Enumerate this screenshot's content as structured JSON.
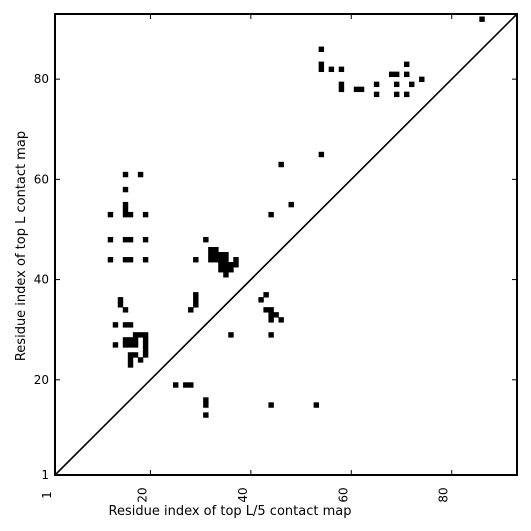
{
  "chart_data": {
    "type": "scatter",
    "title": "",
    "xlabel": "Residue index of top L/5 contact map",
    "ylabel": "Residue index of top L contact map",
    "xlim": [
      1,
      93
    ],
    "ylim": [
      1,
      93
    ],
    "xticks": [
      1,
      20,
      40,
      60,
      80
    ],
    "yticks": [
      1,
      20,
      40,
      60,
      80
    ],
    "x_tick_rotation": -90,
    "grid": false,
    "diagonal": true,
    "marker": "square",
    "color": "#000000",
    "upper_triangle_points": [
      [
        86,
        92
      ],
      [
        54,
        86
      ],
      [
        54,
        83
      ],
      [
        54,
        82
      ],
      [
        56,
        82
      ],
      [
        58,
        82
      ],
      [
        58,
        79
      ],
      [
        58,
        78
      ],
      [
        61,
        78
      ],
      [
        62,
        78
      ],
      [
        65,
        79
      ],
      [
        65,
        77
      ],
      [
        68,
        81
      ],
      [
        69,
        81
      ],
      [
        69,
        79
      ],
      [
        69,
        77
      ],
      [
        71,
        83
      ],
      [
        71,
        81
      ],
      [
        71,
        77
      ],
      [
        72,
        79
      ],
      [
        74,
        80
      ],
      [
        54,
        65
      ],
      [
        46,
        63
      ],
      [
        48,
        55
      ],
      [
        44,
        53
      ]
    ],
    "lower_triangle_points": [
      [
        12,
        53
      ],
      [
        15,
        53
      ],
      [
        16,
        53
      ],
      [
        19,
        53
      ],
      [
        15,
        61
      ],
      [
        18,
        61
      ],
      [
        15,
        58
      ],
      [
        15,
        55
      ],
      [
        15,
        54
      ],
      [
        12,
        48
      ],
      [
        15,
        48
      ],
      [
        16,
        48
      ],
      [
        19,
        48
      ],
      [
        12,
        44
      ],
      [
        15,
        44
      ],
      [
        16,
        44
      ],
      [
        19,
        44
      ],
      [
        29,
        44
      ],
      [
        31,
        48
      ],
      [
        32,
        46
      ],
      [
        33,
        46
      ],
      [
        32,
        45
      ],
      [
        33,
        45
      ],
      [
        34,
        45
      ],
      [
        35,
        45
      ],
      [
        32,
        44
      ],
      [
        33,
        44
      ],
      [
        34,
        44
      ],
      [
        35,
        44
      ],
      [
        37,
        44
      ],
      [
        34,
        43
      ],
      [
        35,
        43
      ],
      [
        36,
        43
      ],
      [
        37,
        43
      ],
      [
        34,
        42
      ],
      [
        35,
        42
      ],
      [
        36,
        42
      ],
      [
        35,
        41
      ],
      [
        14,
        36
      ],
      [
        14,
        35
      ],
      [
        15,
        34
      ],
      [
        29,
        37
      ],
      [
        29,
        36
      ],
      [
        29,
        35
      ],
      [
        28,
        34
      ],
      [
        13,
        31
      ],
      [
        15,
        31
      ],
      [
        16,
        31
      ],
      [
        15,
        28
      ],
      [
        16,
        28
      ],
      [
        17,
        28
      ],
      [
        18,
        29
      ],
      [
        19,
        29
      ],
      [
        15,
        27
      ],
      [
        16,
        27
      ],
      [
        17,
        27
      ],
      [
        13,
        27
      ],
      [
        17,
        29
      ],
      [
        19,
        28
      ],
      [
        19,
        27
      ],
      [
        19,
        26
      ],
      [
        19,
        25
      ],
      [
        16,
        25
      ],
      [
        17,
        25
      ],
      [
        16,
        24
      ],
      [
        16,
        23
      ],
      [
        18,
        24
      ],
      [
        36,
        29
      ],
      [
        25,
        19
      ],
      [
        27,
        19
      ],
      [
        28,
        19
      ],
      [
        31,
        16
      ],
      [
        31,
        15
      ],
      [
        31,
        13
      ],
      [
        42,
        36
      ],
      [
        43,
        37
      ],
      [
        43,
        34
      ],
      [
        44,
        34
      ],
      [
        44,
        33
      ],
      [
        45,
        33
      ],
      [
        44,
        32
      ],
      [
        46,
        32
      ],
      [
        44,
        29
      ],
      [
        44,
        15
      ],
      [
        53,
        15
      ]
    ]
  }
}
